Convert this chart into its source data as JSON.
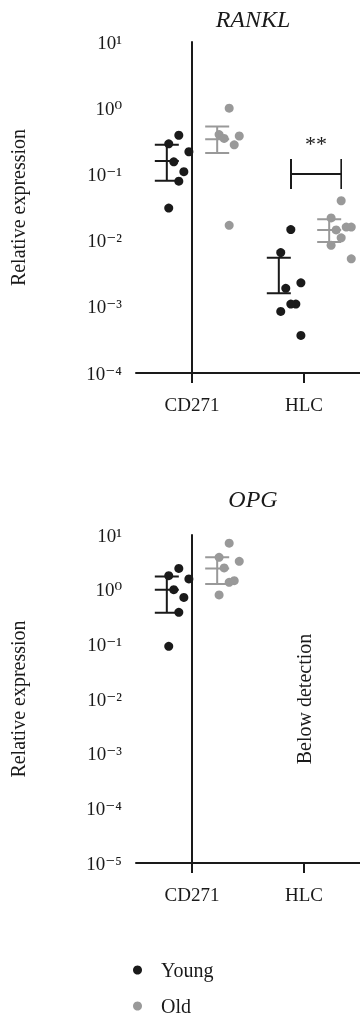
{
  "chart_data": [
    {
      "type": "box",
      "title": "RANKL",
      "ylabel": "Relative expression",
      "categories": [
        "CD271",
        "HLC"
      ],
      "log": "y",
      "ylim": [
        0.0001,
        10
      ],
      "yticks": [
        {
          "value": 0.0001,
          "label": "10⁻⁴"
        },
        {
          "value": 0.001,
          "label": "10⁻³"
        },
        {
          "value": 0.01,
          "label": "10⁻²"
        },
        {
          "value": 0.1,
          "label": "10⁻¹"
        },
        {
          "value": 1,
          "label": "10⁰"
        },
        {
          "value": 10,
          "label": "10¹"
        }
      ],
      "legend": false,
      "marker": "circle",
      "series": [
        {
          "type": "scatter",
          "color": "#1a1a1a",
          "x": [
            "CD271",
            "CD271",
            "CD271",
            "CD271",
            "CD271",
            "CD271",
            "CD271",
            "HLC",
            "HLC",
            "HLC",
            "HLC",
            "HLC",
            "HLC",
            "HLC",
            "HLC"
          ],
          "values": [
            0.39,
            0.29,
            0.22,
            0.155,
            0.11,
            0.079,
            0.031,
            0.0147,
            0.0066,
            0.0023,
            0.0019,
            0.0011,
            0.0011,
            0.00085,
            0.00037
          ]
        },
        {
          "type": "scatter",
          "color": "#999999",
          "x": [
            "CD271",
            "CD271",
            "CD271",
            "CD271",
            "CD271",
            "CD271",
            "HLC",
            "HLC",
            "HLC",
            "HLC",
            "HLC",
            "HLC",
            "HLC",
            "HLC"
          ],
          "values": [
            1.0,
            0.4,
            0.38,
            0.35,
            0.28,
            0.017,
            0.04,
            0.022,
            0.016,
            0.0145,
            0.016,
            0.011,
            0.0085,
            0.0053
          ]
        },
        {
          "color": "#1a1a1a",
          "boxes": [
            {
              "low": 0.08,
              "q1": 0.16,
              "median": 0.16,
              "q3": 0.16,
              "high": 0.28
            },
            {
              "low": 0.0016,
              "q1": 0.0016,
              "median": 0.0016,
              "q3": 0.0016,
              "high": 0.0055
            }
          ]
        },
        {
          "color": "#999999",
          "boxes": [
            {
              "low": 0.21,
              "q1": 0.34,
              "median": 0.34,
              "q3": 0.34,
              "high": 0.53
            },
            {
              "low": 0.0095,
              "q1": 0.0144,
              "median": 0.0144,
              "q3": 0.0144,
              "high": 0.021
            }
          ]
        }
      ],
      "annotations": [
        "**"
      ]
    },
    {
      "type": "box",
      "title": "OPG",
      "ylabel": "Relative expression",
      "categories": [
        "CD271",
        "HLC"
      ],
      "log": "y",
      "ylim": [
        1e-05,
        10
      ],
      "yticks": [
        {
          "value": 1e-05,
          "label": "10⁻⁵"
        },
        {
          "value": 0.0001,
          "label": "10⁻⁴"
        },
        {
          "value": 0.001,
          "label": "10⁻³"
        },
        {
          "value": 0.01,
          "label": "10⁻²"
        },
        {
          "value": 0.1,
          "label": "10⁻¹"
        },
        {
          "value": 1,
          "label": "10⁰"
        },
        {
          "value": 10,
          "label": "10¹"
        }
      ],
      "legend": "bottom",
      "marker": "circle",
      "series": [
        {
          "type": "scatter",
          "name": "Young",
          "color": "#1a1a1a",
          "x": [
            "CD271",
            "CD271",
            "CD271",
            "CD271",
            "CD271",
            "CD271",
            "CD271"
          ],
          "values": [
            2.45,
            1.8,
            1.57,
            1.0,
            0.72,
            0.385,
            0.092
          ]
        },
        {
          "type": "scatter",
          "name": "Old",
          "color": "#999999",
          "x": [
            "CD271",
            "CD271",
            "CD271",
            "CD271",
            "CD271",
            "CD271",
            "CD271"
          ],
          "values": [
            7.1,
            3.9,
            3.3,
            2.5,
            1.46,
            1.36,
            0.8
          ]
        },
        {
          "color": "#1a1a1a",
          "boxes": [
            {
              "low": 0.38,
              "q1": 1.0,
              "median": 1.0,
              "q3": 1.0,
              "high": 1.75
            },
            null
          ]
        },
        {
          "color": "#999999",
          "boxes": [
            {
              "low": 1.27,
              "q1": 2.45,
              "median": 2.45,
              "q3": 2.45,
              "high": 3.9
            },
            null
          ]
        }
      ],
      "annotations": [
        "Below detection"
      ]
    }
  ]
}
